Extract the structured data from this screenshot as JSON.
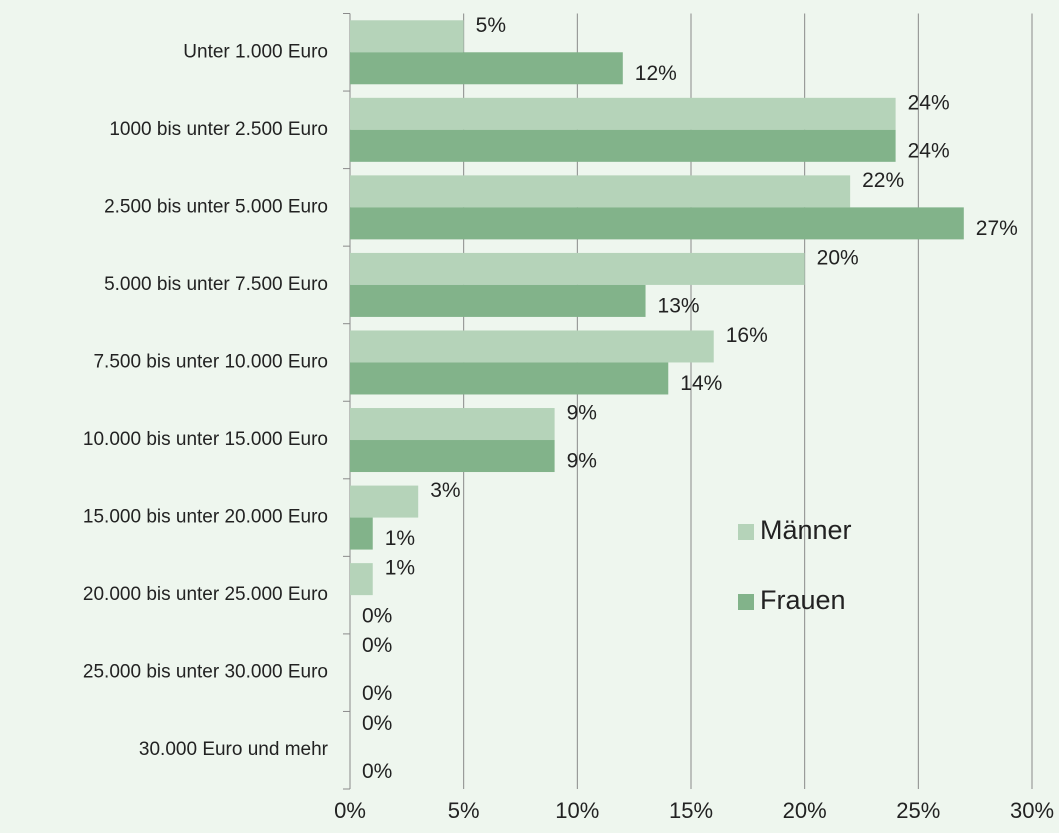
{
  "chart_data": {
    "type": "barh",
    "categories": [
      "Unter 1.000 Euro",
      "1000 bis unter 2.500 Euro",
      "2.500 bis unter 5.000 Euro",
      "5.000 bis unter 7.500 Euro",
      "7.500 bis unter 10.000 Euro",
      "10.000 bis unter 15.000 Euro",
      "15.000 bis unter 20.000 Euro",
      "20.000 bis unter 25.000 Euro",
      "25.000 bis unter 30.000 Euro",
      "30.000 Euro und mehr"
    ],
    "series": [
      {
        "name": "Männer",
        "color": "#b5d3b9",
        "values": [
          5,
          24,
          22,
          20,
          16,
          9,
          3,
          1,
          0,
          0
        ],
        "value_labels": [
          "5%",
          "24%",
          "22%",
          "20%",
          "16%",
          "9%",
          "3%",
          "1%",
          "0%",
          "0%"
        ]
      },
      {
        "name": "Frauen",
        "color": "#82b38a",
        "values": [
          12,
          24,
          27,
          13,
          14,
          9,
          1,
          0,
          0,
          0
        ],
        "value_labels": [
          "12%",
          "24%",
          "27%",
          "13%",
          "14%",
          "9%",
          "1%",
          "0%",
          "0%",
          "0%"
        ]
      }
    ],
    "xlim": [
      0,
      30
    ],
    "xticks": [
      {
        "value": 0,
        "label": "0%"
      },
      {
        "value": 5,
        "label": "5%"
      },
      {
        "value": 10,
        "label": "10%"
      },
      {
        "value": 15,
        "label": "15%"
      },
      {
        "value": 20,
        "label": "20%"
      },
      {
        "value": 25,
        "label": "25%"
      },
      {
        "value": 30,
        "label": "30%"
      }
    ],
    "grid": true,
    "legend": "right"
  }
}
